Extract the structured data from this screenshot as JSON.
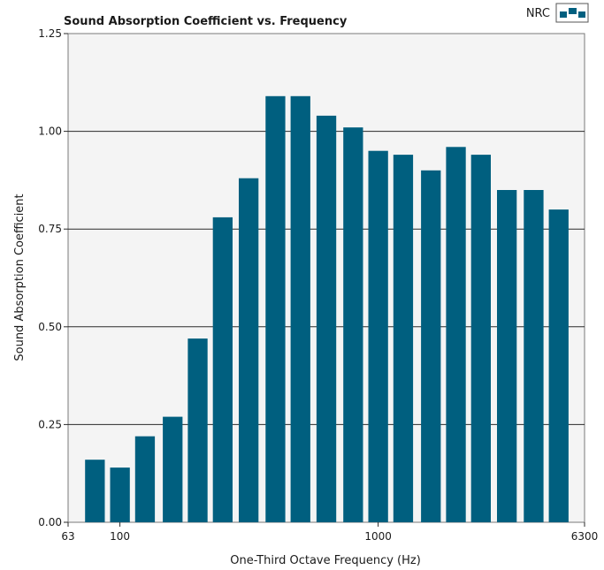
{
  "chart_data": {
    "type": "bar",
    "title": "Sound Absorption Coefficient  vs.  Frequency",
    "xlabel": "One-Third Octave Frequency (Hz)",
    "ylabel": "Sound Absorption Coefficient",
    "x_scale": "log",
    "xlim": [
      63,
      6300
    ],
    "ylim": [
      0,
      1.25
    ],
    "x_ticks": [
      63,
      100,
      1000,
      6300
    ],
    "x_tick_labels": [
      "63",
      "100",
      "1000",
      "6300"
    ],
    "y_ticks": [
      0,
      0.25,
      0.5,
      0.75,
      1.0,
      1.25
    ],
    "y_tick_labels": [
      "0.00",
      "0.25",
      "0.50",
      "0.75",
      "1.00",
      "1.25"
    ],
    "grid": "horizontal",
    "legend": {
      "label": "NRC",
      "placement": "top-right"
    },
    "bar_color": "#005f7f",
    "plot_background": "#f4f4f4",
    "x": [
      80,
      100,
      125,
      160,
      200,
      250,
      315,
      400,
      500,
      630,
      800,
      1000,
      1250,
      1600,
      2000,
      2500,
      3150,
      4000,
      5000
    ],
    "values": [
      0.16,
      0.14,
      0.22,
      0.27,
      0.47,
      0.78,
      0.88,
      1.09,
      1.09,
      1.04,
      1.01,
      0.95,
      0.94,
      0.9,
      0.96,
      0.94,
      0.85,
      0.85,
      0.8
    ]
  }
}
